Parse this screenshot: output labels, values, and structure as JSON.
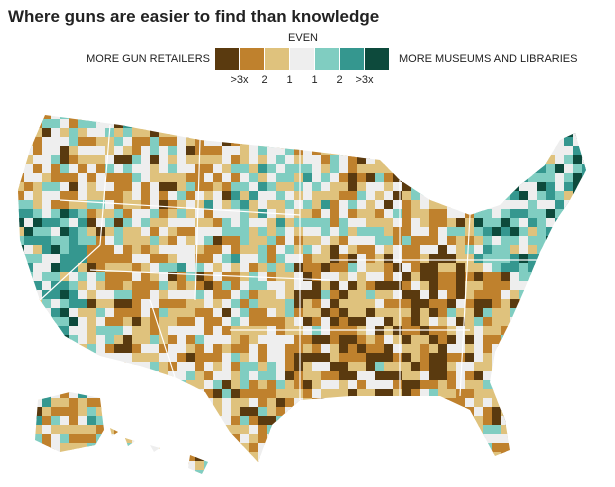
{
  "title": "Where guns are easier to find than knowledge",
  "legend": {
    "left_label": "MORE GUN RETAILERS",
    "center_label": "EVEN",
    "right_label": "MORE MUSEUMS AND LIBRARIES",
    "colors": [
      "#5a3a0f",
      "#bf812d",
      "#dfc27d",
      "#eeeeee",
      "#80cdc1",
      "#35978f",
      "#0d4a3c"
    ],
    "tick_labels": [
      ">3x",
      "2",
      "1",
      "1",
      "2",
      ">3x"
    ]
  }
}
